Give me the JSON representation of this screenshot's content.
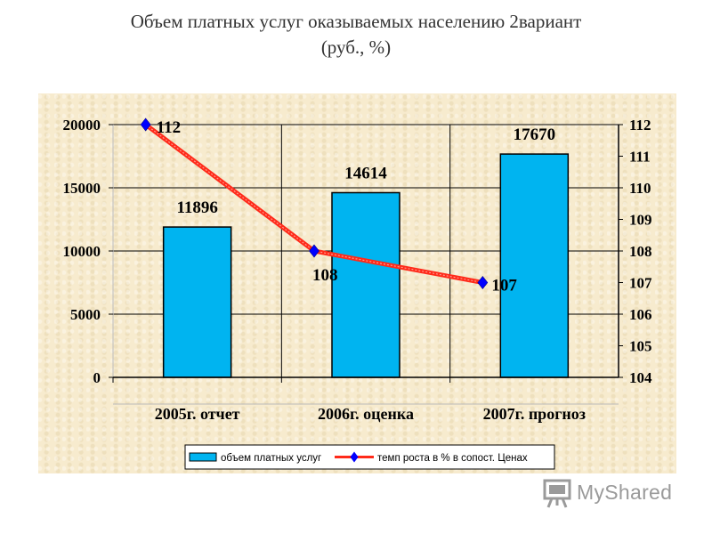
{
  "title_line1": "Объем платных услуг оказываемых населению 2вариант",
  "title_line2": "(руб., %)",
  "chart_data": {
    "type": "bar",
    "categories": [
      "2005г. отчет",
      "2006г. оценка",
      "2007г. прогноз"
    ],
    "series": [
      {
        "name": "объем платных услуг",
        "kind": "bar",
        "axis": "left",
        "values": [
          11896,
          14614,
          17670
        ],
        "color": "#00b4f0"
      },
      {
        "name": "темп роста в % в сопост. Ценах",
        "kind": "line",
        "axis": "right",
        "values": [
          112,
          108,
          107
        ],
        "color": "#ff2a1a",
        "marker_color": "#0000ff"
      }
    ],
    "y_left": {
      "min": 0,
      "max": 20000,
      "ticks": [
        "0",
        "5000",
        "10000",
        "15000",
        "20000"
      ]
    },
    "y_right": {
      "min": 104,
      "max": 112,
      "ticks": [
        "104",
        "105",
        "106",
        "107",
        "108",
        "109",
        "110",
        "111",
        "112"
      ]
    },
    "bar_labels": [
      "11896",
      "14614",
      "17670"
    ],
    "line_labels": [
      "112",
      "108",
      "107"
    ],
    "legend_placement": "bottom",
    "grid": true
  },
  "watermark": {
    "text": "MyShared"
  }
}
